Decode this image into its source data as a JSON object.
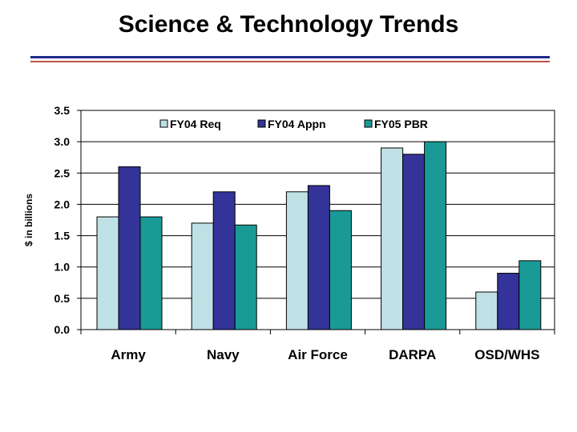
{
  "slide": {
    "title": "Science & Technology Trends"
  },
  "colors": {
    "FY04 Req": "#bfe1e6",
    "FY04 Appn": "#333399",
    "FY05 PBR": "#1a9a96",
    "rule_blue": "#1f2a8c",
    "rule_red": "#c0504d"
  },
  "chart_data": {
    "type": "bar",
    "title": "",
    "xlabel": "",
    "ylabel": "$ in billions",
    "categories": [
      "Army",
      "Navy",
      "Air Force",
      "DARPA",
      "OSD/WHS"
    ],
    "series": [
      {
        "name": "FY04 Req",
        "values": [
          1.8,
          1.7,
          2.2,
          2.9,
          0.6
        ]
      },
      {
        "name": "FY04 Appn",
        "values": [
          2.6,
          2.2,
          2.3,
          2.8,
          0.9
        ]
      },
      {
        "name": "FY05 PBR",
        "values": [
          1.8,
          1.67,
          1.9,
          3.0,
          1.1
        ]
      }
    ],
    "ylim": [
      0,
      3.5
    ],
    "yticks": [
      "0.0",
      "0.5",
      "1.0",
      "1.5",
      "2.0",
      "2.5",
      "3.0",
      "3.5"
    ],
    "grid": true,
    "legend": "top-inside"
  }
}
